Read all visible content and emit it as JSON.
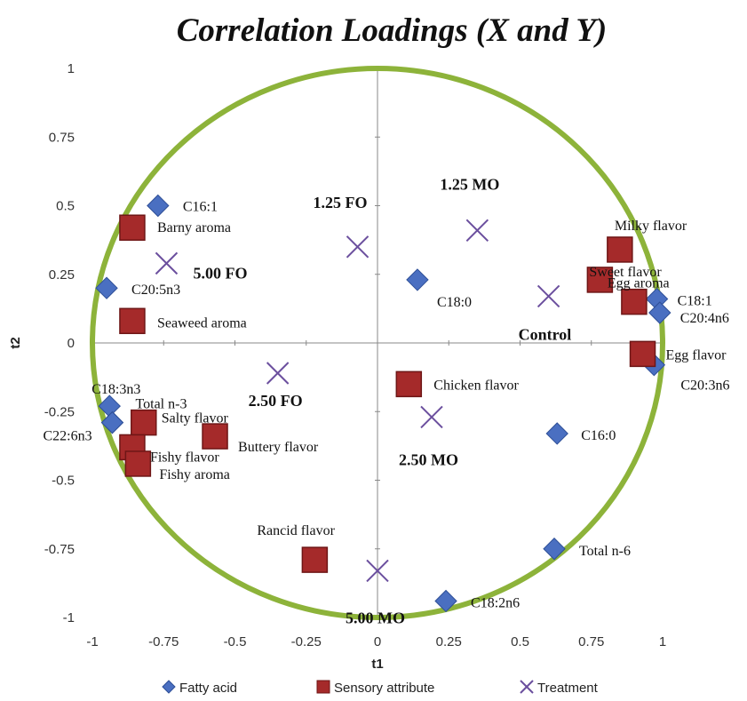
{
  "chart_data": {
    "type": "scatter",
    "title": "Correlation Loadings (X and Y)",
    "xlabel": "t1",
    "ylabel": "t2",
    "xlim": [
      -1,
      1
    ],
    "ylim": [
      -1,
      1
    ],
    "xticks": [
      -1,
      -0.75,
      -0.5,
      -0.25,
      0,
      0.25,
      0.5,
      0.75,
      1
    ],
    "yticks": [
      -1,
      -0.75,
      -0.5,
      -0.25,
      0,
      0.25,
      0.5,
      0.75,
      1
    ],
    "xtick_labels": [
      "-1",
      "-0.75",
      "-0.5",
      "-0.25",
      "0",
      "0.25",
      "0.5",
      "0.75",
      "1"
    ],
    "ytick_labels": [
      "-1",
      "-0.75",
      "-0.5",
      "-0.25",
      "0",
      "0.25",
      "0.5",
      "0.75",
      "1"
    ],
    "grid": false,
    "unit_circle": true,
    "legend_position": "bottom",
    "series": [
      {
        "name": "Fatty acid",
        "marker": "diamond",
        "color": "#4a6fc1",
        "points": [
          {
            "label": "C16:1",
            "x": -0.77,
            "y": 0.5
          },
          {
            "label": "C20:5n3",
            "x": -0.95,
            "y": 0.2
          },
          {
            "label": "C18:0",
            "x": 0.14,
            "y": 0.23
          },
          {
            "label": "C18:1",
            "x": 0.98,
            "y": 0.16
          },
          {
            "label": "C20:4n6",
            "x": 0.99,
            "y": 0.11
          },
          {
            "label": "C20:3n6",
            "x": 0.97,
            "y": -0.08
          },
          {
            "label": "C18:3n3",
            "x": -0.94,
            "y": -0.23
          },
          {
            "label": "Total n-3",
            "x": -0.93,
            "y": -0.29
          },
          {
            "label": "C22:6n3",
            "x": -0.93,
            "y": -0.29
          },
          {
            "label": "C16:0",
            "x": 0.63,
            "y": -0.33
          },
          {
            "label": "Total n-6",
            "x": 0.62,
            "y": -0.75
          },
          {
            "label": "C18:2n6",
            "x": 0.24,
            "y": -0.94
          }
        ]
      },
      {
        "name": "Sensory attribute",
        "marker": "square",
        "color": "#a52a2a",
        "points": [
          {
            "label": "Barny aroma",
            "x": -0.86,
            "y": 0.42
          },
          {
            "label": "Seaweed aroma",
            "x": -0.86,
            "y": 0.08
          },
          {
            "label": "Milky flavor",
            "x": 0.85,
            "y": 0.34
          },
          {
            "label": "Sweet flavor",
            "x": 0.78,
            "y": 0.23
          },
          {
            "label": "Egg aroma",
            "x": 0.9,
            "y": 0.15
          },
          {
            "label": "Egg flavor",
            "x": 0.93,
            "y": -0.04
          },
          {
            "label": "Chicken flavor",
            "x": 0.11,
            "y": -0.15
          },
          {
            "label": "Salty flavor",
            "x": -0.82,
            "y": -0.29
          },
          {
            "label": "Buttery flavor",
            "x": -0.57,
            "y": -0.34
          },
          {
            "label": "Fishy flavor",
            "x": -0.86,
            "y": -0.38
          },
          {
            "label": "Fishy aroma",
            "x": -0.84,
            "y": -0.44
          },
          {
            "label": "Rancid flavor",
            "x": -0.22,
            "y": -0.79
          }
        ]
      },
      {
        "name": "Treatment",
        "marker": "x",
        "color": "#6b4f9e",
        "points": [
          {
            "label": "1.25 FO",
            "x": -0.07,
            "y": 0.35
          },
          {
            "label": "1.25 MO",
            "x": 0.35,
            "y": 0.41
          },
          {
            "label": "5.00 FO",
            "x": -0.74,
            "y": 0.29
          },
          {
            "label": "Control",
            "x": 0.6,
            "y": 0.17
          },
          {
            "label": "2.50 FO",
            "x": -0.35,
            "y": -0.11
          },
          {
            "label": "2.50 MO",
            "x": 0.19,
            "y": -0.27
          },
          {
            "label": "5.00 MO",
            "x": 0.0,
            "y": -0.83
          }
        ]
      }
    ]
  },
  "colors": {
    "circle": "#8db33a",
    "axis": "#888888"
  }
}
